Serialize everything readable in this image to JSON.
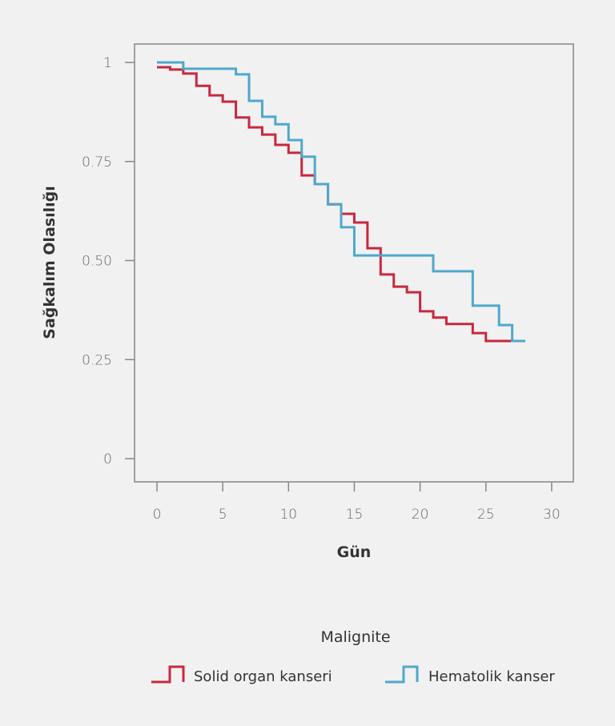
{
  "chart_data": {
    "type": "line",
    "subtype": "step",
    "xlabel": "Gün",
    "ylabel": "Sağkalım Olasılığı",
    "xlim": [
      -1.7,
      31.7
    ],
    "ylim": [
      -0.06,
      1.05
    ],
    "x_ticks": [
      0,
      5,
      10,
      15,
      20,
      25,
      30
    ],
    "x_tick_labels": [
      "0",
      "5",
      "10",
      "15",
      "20",
      "25",
      "30"
    ],
    "y_ticks": [
      0,
      0.25,
      0.5,
      0.75,
      1
    ],
    "y_tick_labels": [
      "0",
      "0.25",
      "0.50",
      "0.75",
      "1"
    ],
    "grid": false,
    "legend": {
      "title": "Malignite",
      "placement": "bottom"
    },
    "series": [
      {
        "name": "Solid organ kanseri",
        "color": "#c8283f",
        "x": [
          0,
          1,
          2,
          3,
          4,
          5,
          6,
          7,
          8,
          9,
          10,
          11,
          12,
          13,
          14,
          15,
          16,
          17,
          18,
          19,
          20,
          21,
          22,
          24,
          25,
          27
        ],
        "y": [
          0.988,
          0.982,
          0.972,
          0.941,
          0.917,
          0.901,
          0.861,
          0.836,
          0.818,
          0.792,
          0.772,
          0.715,
          0.693,
          0.642,
          0.618,
          0.596,
          0.531,
          0.465,
          0.434,
          0.42,
          0.372,
          0.356,
          0.34,
          0.317,
          0.297,
          0.297
        ]
      },
      {
        "name": "Hematolik kanser",
        "color": "#4fa8cc",
        "x": [
          0,
          2,
          6,
          7,
          8,
          9,
          10,
          11,
          12,
          13,
          14,
          15,
          21,
          24,
          26,
          27,
          28
        ],
        "y": [
          1.0,
          0.984,
          0.97,
          0.903,
          0.863,
          0.844,
          0.804,
          0.762,
          0.693,
          0.642,
          0.584,
          0.513,
          0.473,
          0.386,
          0.337,
          0.297,
          0.297
        ]
      }
    ]
  }
}
